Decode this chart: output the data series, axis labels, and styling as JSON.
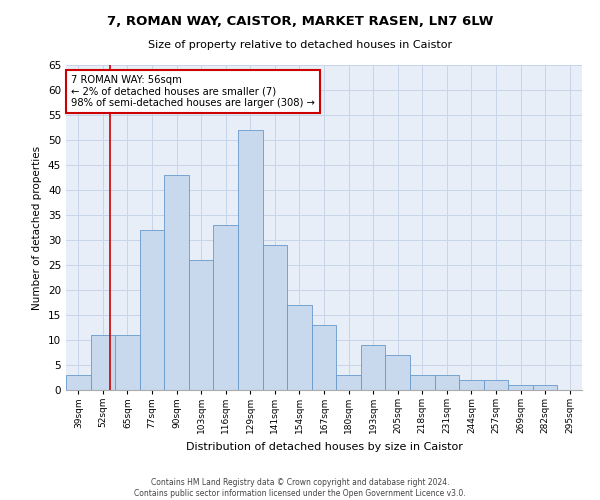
{
  "title1": "7, ROMAN WAY, CAISTOR, MARKET RASEN, LN7 6LW",
  "title2": "Size of property relative to detached houses in Caistor",
  "xlabel": "Distribution of detached houses by size in Caistor",
  "ylabel": "Number of detached properties",
  "categories": [
    "39sqm",
    "52sqm",
    "65sqm",
    "77sqm",
    "90sqm",
    "103sqm",
    "116sqm",
    "129sqm",
    "141sqm",
    "154sqm",
    "167sqm",
    "180sqm",
    "193sqm",
    "205sqm",
    "218sqm",
    "231sqm",
    "244sqm",
    "257sqm",
    "269sqm",
    "282sqm",
    "295sqm"
  ],
  "values": [
    3,
    11,
    11,
    32,
    43,
    26,
    33,
    52,
    29,
    17,
    13,
    3,
    9,
    7,
    3,
    3,
    2,
    2,
    1,
    1,
    0
  ],
  "bar_color": "#c8d9ee",
  "bar_edge_color": "#6699cc",
  "annotation_text": "7 ROMAN WAY: 56sqm\n← 2% of detached houses are smaller (7)\n98% of semi-detached houses are larger (308) →",
  "annotation_box_color": "#ffffff",
  "annotation_box_edge_color": "#cc0000",
  "ylim": [
    0,
    65
  ],
  "yticks": [
    0,
    5,
    10,
    15,
    20,
    25,
    30,
    35,
    40,
    45,
    50,
    55,
    60,
    65
  ],
  "grid_color": "#c8d4e8",
  "background_color": "#e8eef8",
  "footer1": "Contains HM Land Registry data © Crown copyright and database right 2024.",
  "footer2": "Contains public sector information licensed under the Open Government Licence v3.0."
}
